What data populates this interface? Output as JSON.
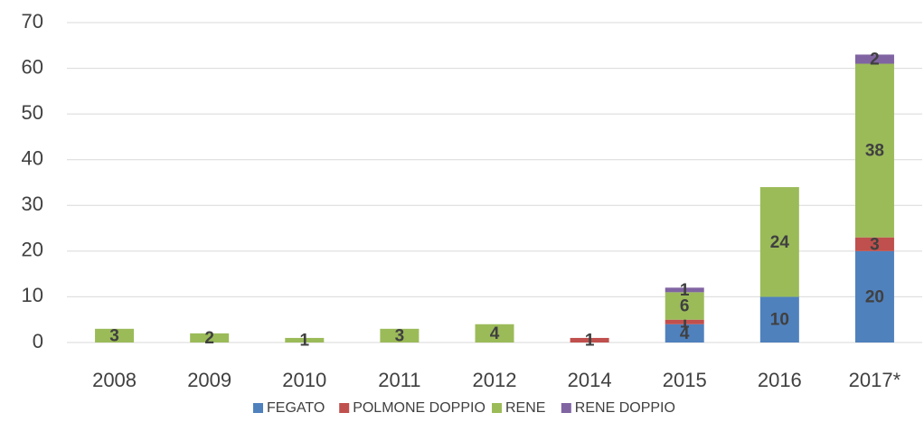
{
  "chart_data": {
    "type": "stacked_bar",
    "categories": [
      "2008",
      "2009",
      "2010",
      "2011",
      "2012",
      "2014",
      "2015",
      "2016",
      "2017*"
    ],
    "series": [
      {
        "name": "FEGATO",
        "color": "#4f81bd",
        "values": [
          null,
          null,
          null,
          null,
          null,
          null,
          4,
          10,
          20
        ]
      },
      {
        "name": "POLMONE DOPPIO",
        "color": "#c0504d",
        "values": [
          null,
          null,
          null,
          null,
          null,
          1,
          1,
          null,
          3
        ]
      },
      {
        "name": "RENE",
        "color": "#9bbb59",
        "values": [
          3,
          2,
          1,
          3,
          4,
          null,
          6,
          24,
          38
        ]
      },
      {
        "name": "RENE DOPPIO",
        "color": "#8064a2",
        "values": [
          null,
          null,
          null,
          null,
          null,
          null,
          1,
          null,
          2
        ]
      }
    ],
    "ylim": [
      0,
      70
    ],
    "yticks": [
      0,
      10,
      20,
      30,
      40,
      50,
      60,
      70
    ],
    "grid": true,
    "legend": "bottom"
  }
}
